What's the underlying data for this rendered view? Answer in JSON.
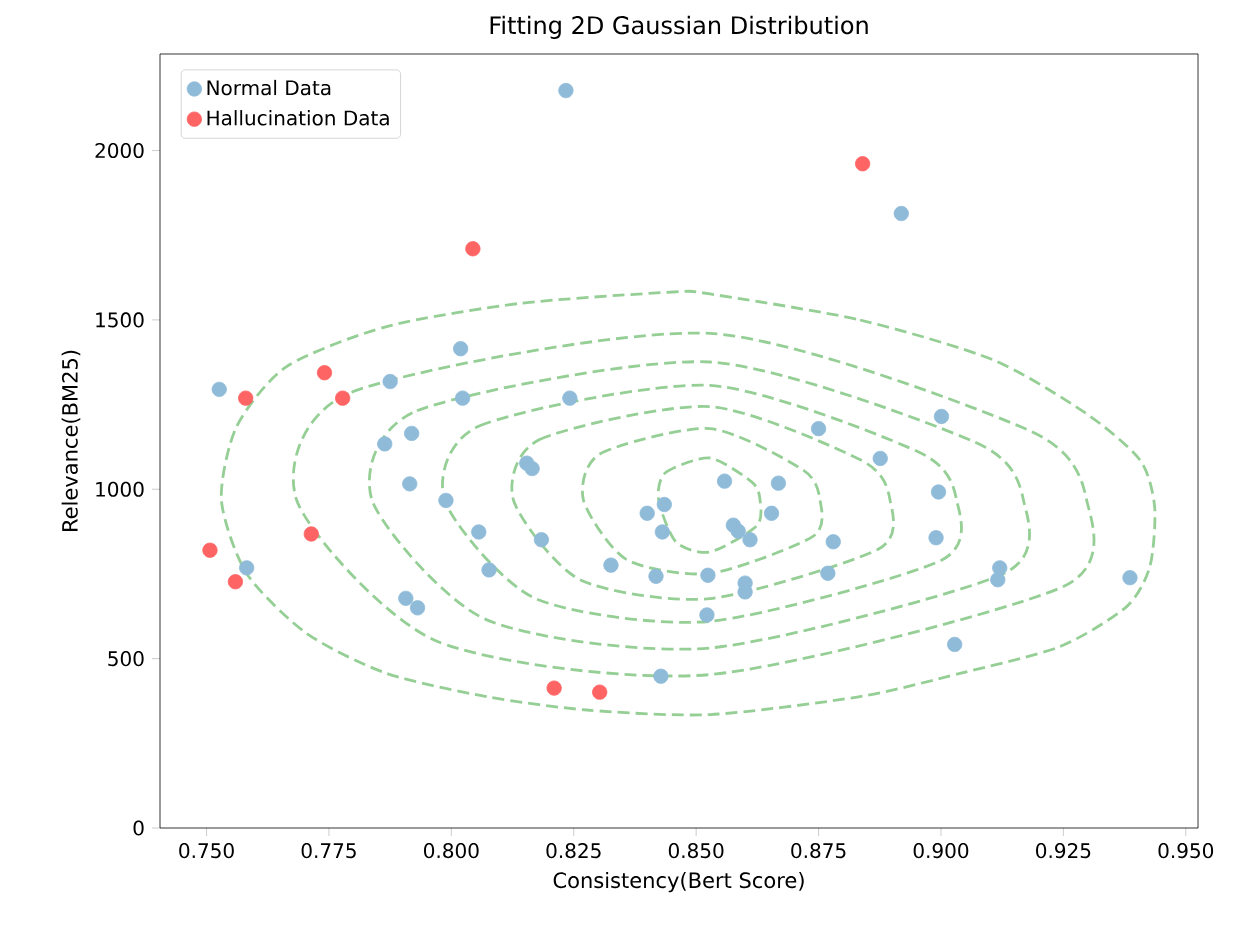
{
  "chart_data": {
    "type": "scatter",
    "title": "Fitting 2D Gaussian Distribution",
    "xlabel": "Consistency(Bert Score)",
    "ylabel": "Relevance(BM25)",
    "xlim": [
      0.7405,
      0.9525
    ],
    "ylim": [
      0,
      2285
    ],
    "xticks": [
      {
        "value": 0.75,
        "label": "0.750"
      },
      {
        "value": 0.775,
        "label": "0.775"
      },
      {
        "value": 0.8,
        "label": "0.800"
      },
      {
        "value": 0.825,
        "label": "0.825"
      },
      {
        "value": 0.85,
        "label": "0.850"
      },
      {
        "value": 0.875,
        "label": "0.875"
      },
      {
        "value": 0.9,
        "label": "0.900"
      },
      {
        "value": 0.925,
        "label": "0.925"
      },
      {
        "value": 0.95,
        "label": "0.950"
      }
    ],
    "yticks": [
      0,
      500,
      1000,
      1500,
      2000
    ],
    "legend": "top left",
    "grid": false,
    "series": [
      {
        "name": "Normal Data",
        "color": "#8fbbd9",
        "marker": "circle",
        "x": [
          0.7526,
          0.8234,
          0.8919,
          0.7582,
          0.7875,
          0.8019,
          0.8023,
          0.8242,
          0.7864,
          0.7919,
          0.7915,
          0.7989,
          0.8056,
          0.8077,
          0.7907,
          0.7931,
          0.8154,
          0.8165,
          0.8184,
          0.8326,
          0.84,
          0.8435,
          0.8431,
          0.8418,
          0.8428,
          0.8524,
          0.8522,
          0.8558,
          0.8576,
          0.8586,
          0.861,
          0.86,
          0.86,
          0.8668,
          0.8654,
          0.878,
          0.8769,
          0.875,
          0.8876,
          0.9001,
          0.8995,
          0.899,
          0.9028,
          0.912,
          0.9116,
          0.9386
        ],
        "values": [
          1295,
          2177,
          1814,
          768,
          1318,
          1415,
          1269,
          1269,
          1134,
          1165,
          1016,
          967,
          874,
          762,
          678,
          650,
          1077,
          1061,
          851,
          776,
          929,
          955,
          874,
          743,
          448,
          746,
          629,
          1024,
          894,
          876,
          851,
          723,
          697,
          1018,
          929,
          845,
          752,
          1179,
          1091,
          1215,
          992,
          857,
          542,
          768,
          733,
          739
        ]
      },
      {
        "name": "Hallucination Data",
        "color": "#ff6464",
        "marker": "circle",
        "x": [
          0.758,
          0.7741,
          0.7778,
          0.7507,
          0.7559,
          0.7714,
          0.8044,
          0.821,
          0.8303,
          0.884
        ],
        "values": [
          1269,
          1344,
          1269,
          820,
          727,
          868,
          1710,
          413,
          401,
          1961
        ]
      }
    ]
  }
}
